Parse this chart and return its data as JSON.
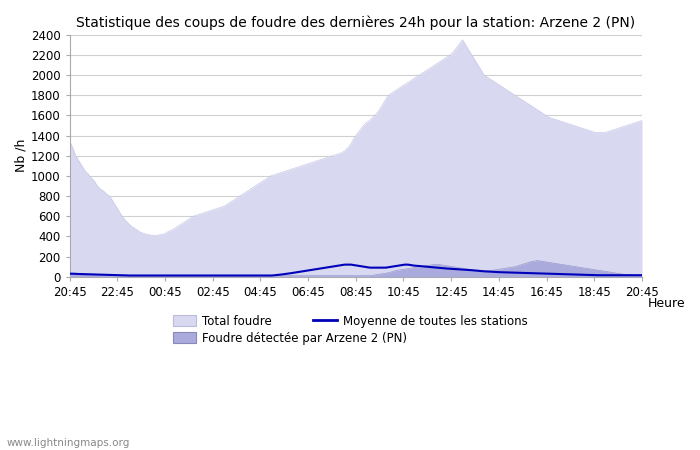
{
  "title": "Statistique des coups de foudre des dernières 24h pour la station: Arzene 2 (PN)",
  "ylabel": "Nb /h",
  "xlabel": "Heure",
  "watermark": "www.lightningmaps.org",
  "x_labels": [
    "20:45",
    "22:45",
    "00:45",
    "02:45",
    "04:45",
    "06:45",
    "08:45",
    "10:45",
    "12:45",
    "14:45",
    "16:45",
    "18:45",
    "20:45"
  ],
  "ylim": [
    0,
    2400
  ],
  "yticks": [
    0,
    200,
    400,
    600,
    800,
    1000,
    1200,
    1400,
    1600,
    1800,
    2000,
    2200,
    2400
  ],
  "total_foudre": [
    1350,
    1280,
    1200,
    1150,
    1100,
    1050,
    1020,
    980,
    950,
    900,
    870,
    850,
    820,
    800,
    750,
    700,
    650,
    600,
    560,
    530,
    500,
    480,
    460,
    440,
    430,
    420,
    415,
    410,
    410,
    415,
    420,
    430,
    450,
    460,
    480,
    500,
    520,
    540,
    560,
    580,
    600,
    610,
    620,
    630,
    640,
    650,
    660,
    670,
    680,
    690,
    700,
    720,
    740,
    760,
    780,
    800,
    820,
    840,
    860,
    880,
    900,
    920,
    940,
    960,
    980,
    1000,
    1010,
    1020,
    1030,
    1040,
    1050,
    1060,
    1070,
    1080,
    1090,
    1100,
    1110,
    1120,
    1130,
    1140,
    1150,
    1160,
    1170,
    1180,
    1190,
    1200,
    1210,
    1220,
    1230,
    1250,
    1280,
    1320,
    1380,
    1420,
    1460,
    1500,
    1530,
    1550,
    1580,
    1610,
    1650,
    1700,
    1750,
    1800,
    1820,
    1840,
    1860,
    1880,
    1900,
    1920,
    1940,
    1960,
    1980,
    2000,
    2020,
    2040,
    2060,
    2080,
    2100,
    2120,
    2140,
    2160,
    2180,
    2200,
    2230,
    2270,
    2310,
    2350,
    2300,
    2250,
    2200,
    2150,
    2100,
    2050,
    2000,
    1980,
    1960,
    1940,
    1920,
    1900,
    1880,
    1860,
    1840,
    1820,
    1800,
    1780,
    1760,
    1740,
    1720,
    1700,
    1680,
    1660,
    1640,
    1620,
    1600,
    1580,
    1570,
    1560,
    1550,
    1540,
    1530,
    1520,
    1510,
    1500,
    1490,
    1480,
    1470,
    1460,
    1450,
    1440,
    1430,
    1430,
    1430,
    1430,
    1440,
    1450,
    1460,
    1470,
    1480,
    1490,
    1500,
    1510,
    1520,
    1530,
    1540,
    1550
  ],
  "detected_foudre": [
    30,
    30,
    28,
    26,
    24,
    22,
    20,
    18,
    16,
    14,
    12,
    10,
    10,
    10,
    10,
    10,
    10,
    10,
    10,
    10,
    10,
    10,
    10,
    10,
    10,
    10,
    10,
    10,
    10,
    10,
    10,
    10,
    10,
    10,
    10,
    10,
    10,
    10,
    10,
    10,
    10,
    10,
    10,
    10,
    10,
    10,
    10,
    10,
    10,
    10,
    10,
    10,
    10,
    10,
    10,
    10,
    10,
    10,
    10,
    10,
    10,
    10,
    10,
    10,
    10,
    10,
    10,
    10,
    10,
    10,
    10,
    10,
    10,
    10,
    10,
    10,
    10,
    10,
    10,
    10,
    10,
    10,
    10,
    10,
    10,
    10,
    10,
    10,
    10,
    10,
    10,
    10,
    10,
    10,
    10,
    10,
    15,
    20,
    25,
    30,
    35,
    40,
    50,
    60,
    65,
    70,
    75,
    80,
    85,
    90,
    95,
    100,
    105,
    110,
    115,
    120,
    120,
    120,
    115,
    110,
    105,
    100,
    95,
    90,
    85,
    80,
    75,
    70,
    65,
    60,
    55,
    50,
    55,
    60,
    65,
    70,
    75,
    80,
    85,
    90,
    95,
    100,
    110,
    120,
    130,
    140,
    150,
    155,
    160,
    155,
    150,
    145,
    140,
    135,
    130,
    125,
    120,
    115,
    110,
    105,
    100,
    95,
    90,
    85,
    80,
    75,
    70,
    65,
    60,
    55,
    50,
    45,
    40,
    35,
    30,
    25,
    20,
    18,
    16,
    14,
    12,
    10
  ],
  "moyenne": [
    30,
    30,
    28,
    27,
    26,
    25,
    24,
    23,
    22,
    21,
    20,
    19,
    18,
    17,
    16,
    15,
    14,
    13,
    12,
    12,
    12,
    12,
    12,
    12,
    12,
    12,
    12,
    12,
    12,
    12,
    12,
    12,
    12,
    12,
    12,
    12,
    12,
    12,
    12,
    12,
    12,
    12,
    12,
    12,
    12,
    12,
    12,
    12,
    12,
    12,
    12,
    12,
    12,
    12,
    12,
    12,
    12,
    12,
    12,
    12,
    12,
    12,
    12,
    12,
    12,
    15,
    18,
    22,
    26,
    30,
    35,
    40,
    45,
    50,
    55,
    60,
    65,
    70,
    75,
    80,
    85,
    90,
    95,
    100,
    105,
    110,
    115,
    120,
    120,
    120,
    115,
    110,
    105,
    100,
    95,
    90,
    90,
    90,
    90,
    90,
    90,
    95,
    100,
    105,
    110,
    115,
    120,
    120,
    115,
    110,
    108,
    105,
    102,
    100,
    97,
    94,
    91,
    88,
    85,
    82,
    80,
    78,
    76,
    74,
    72,
    70,
    68,
    65,
    62,
    60,
    57,
    54,
    52,
    50,
    48,
    46,
    45,
    44,
    43,
    42,
    41,
    40,
    39,
    38,
    37,
    36,
    35,
    34,
    33,
    32,
    31,
    30,
    29,
    28,
    27,
    26,
    25,
    24,
    23,
    22,
    21,
    20,
    19,
    18,
    17,
    16,
    15,
    15,
    15,
    15,
    15,
    15,
    15,
    15,
    15,
    15,
    15,
    15,
    15,
    15,
    15,
    15
  ],
  "bg_color": "#ffffff",
  "plot_bg_color": "#ffffff",
  "grid_color": "#d0d0d0",
  "total_foudre_fill_color": "#d8d8f0",
  "total_foudre_line_color": "#c8c8e8",
  "detected_fill_color": "#aaaadd",
  "detected_line_color": "#9999cc",
  "moyenne_line_color": "#0000bb",
  "title_fontsize": 10,
  "tick_fontsize": 8.5,
  "label_fontsize": 9,
  "legend_fontsize": 8.5
}
